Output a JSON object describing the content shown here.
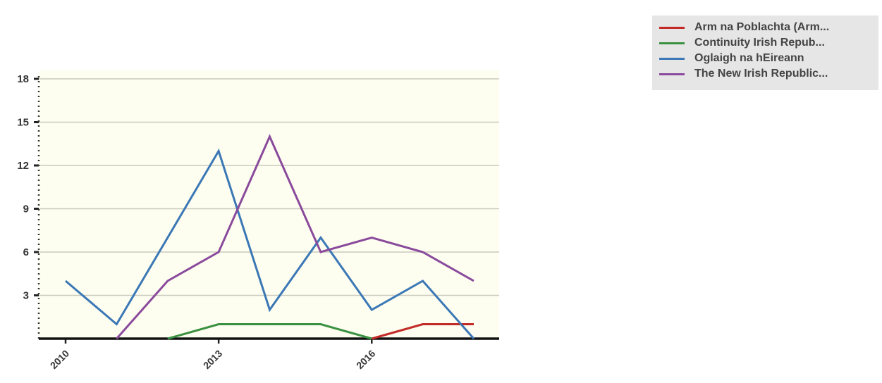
{
  "chart_data": {
    "type": "line",
    "x": [
      2010,
      2011,
      2012,
      2013,
      2014,
      2015,
      2016,
      2017,
      2018
    ],
    "x_tick_labels": [
      "2010",
      "2013",
      "2016"
    ],
    "y_ticks": [
      3,
      6,
      9,
      12,
      15,
      18
    ],
    "ylim": [
      0,
      18
    ],
    "xlim": [
      2009.5,
      2018.5
    ],
    "grid": true,
    "legend_position": "top-right",
    "plot_background": "#fdfdf0",
    "series": [
      {
        "name": "Arm na Poblachta (Arm...",
        "color": "#c22a26",
        "x": [
          2016,
          2017,
          2018
        ],
        "values": [
          0,
          1,
          1
        ]
      },
      {
        "name": "Continuity Irish Repub...",
        "color": "#3a9140",
        "x": [
          2012,
          2013,
          2014,
          2015,
          2016
        ],
        "values": [
          0,
          1,
          1,
          1,
          0
        ]
      },
      {
        "name": "Oglaigh na hEireann",
        "color": "#3b78b5",
        "x": [
          2010,
          2011,
          2012,
          2013,
          2014,
          2015,
          2016,
          2017,
          2018
        ],
        "values": [
          4,
          1,
          7,
          13,
          2,
          7,
          2,
          4,
          0
        ]
      },
      {
        "name": "The New Irish Republic...",
        "color": "#8a4a9c",
        "x": [
          2011,
          2012,
          2013,
          2014,
          2015,
          2016,
          2017,
          2018
        ],
        "values": [
          0,
          4,
          6,
          14,
          6,
          7,
          6,
          4
        ]
      }
    ]
  }
}
